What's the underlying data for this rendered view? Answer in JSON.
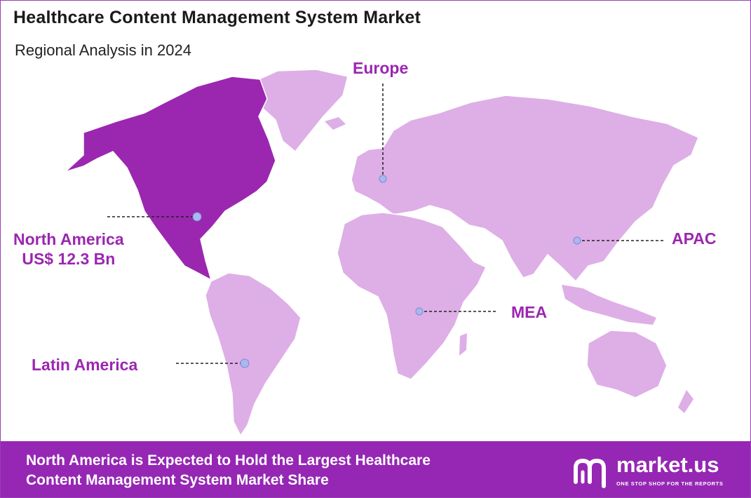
{
  "title": "Healthcare Content Management System Market",
  "subtitle": "Regional Analysis in 2024",
  "colors": {
    "highlight_region": "#9b27b0",
    "other_regions": "#deaee6",
    "accent_text": "#9b27b0",
    "footer_bg": "#9527b4",
    "marker": "#a9b8f0"
  },
  "regions": {
    "north_america": {
      "name": "North America",
      "value": "US$ 12.3 Bn"
    },
    "europe": {
      "name": "Europe"
    },
    "apac": {
      "name": "APAC"
    },
    "mea": {
      "name": "MEA"
    },
    "latin_america": {
      "name": "Latin America"
    }
  },
  "footer": {
    "line1": "North America is Expected to Hold the Largest Healthcare",
    "line2": "Content Management System Market Share"
  },
  "brand": {
    "name": "market.us",
    "tagline": "ONE STOP SHOP FOR THE REPORTS"
  }
}
